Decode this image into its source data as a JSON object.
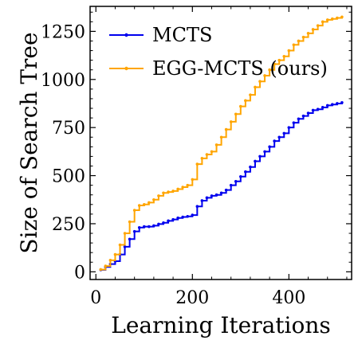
{
  "chart_data": {
    "type": "line",
    "title": "",
    "xlabel": "Learning Iterations",
    "ylabel": "Size of Search Tree",
    "xlim": [
      -12,
      530
    ],
    "ylim": [
      -40,
      1380
    ],
    "xticks": [
      0,
      200,
      400
    ],
    "xtick_labels": [
      "0",
      "200",
      "400"
    ],
    "yticks": [
      0,
      250,
      500,
      750,
      1000,
      1250
    ],
    "ytick_labels": [
      "0",
      "250",
      "500",
      "750",
      "1000",
      "1250"
    ],
    "grid": false,
    "legend_position": "top-left",
    "series": [
      {
        "name": "MCTS",
        "color": "#0000ee",
        "x": [
          10,
          20,
          30,
          40,
          50,
          60,
          70,
          80,
          90,
          100,
          110,
          120,
          130,
          140,
          150,
          160,
          170,
          180,
          190,
          200,
          210,
          220,
          230,
          240,
          250,
          260,
          270,
          280,
          290,
          300,
          310,
          320,
          330,
          340,
          350,
          360,
          370,
          380,
          390,
          400,
          410,
          420,
          430,
          440,
          450,
          460,
          470,
          480,
          490,
          500,
          510
        ],
        "y": [
          10,
          25,
          40,
          55,
          90,
          130,
          170,
          210,
          230,
          235,
          235,
          240,
          248,
          255,
          265,
          272,
          280,
          285,
          288,
          295,
          340,
          370,
          385,
          395,
          400,
          410,
          425,
          450,
          470,
          495,
          520,
          545,
          575,
          600,
          625,
          650,
          680,
          700,
          720,
          750,
          775,
          795,
          810,
          825,
          840,
          845,
          855,
          865,
          870,
          875,
          880
        ]
      },
      {
        "name": "EGG-MCTS (ours)",
        "color": "#ffa500",
        "x": [
          10,
          20,
          30,
          40,
          50,
          60,
          70,
          80,
          90,
          100,
          110,
          120,
          130,
          140,
          150,
          160,
          170,
          180,
          190,
          200,
          210,
          220,
          230,
          240,
          250,
          260,
          270,
          280,
          290,
          300,
          310,
          320,
          330,
          340,
          350,
          360,
          370,
          380,
          390,
          400,
          410,
          420,
          430,
          440,
          450,
          460,
          470,
          480,
          490,
          500,
          510
        ],
        "y": [
          12,
          30,
          60,
          90,
          140,
          200,
          260,
          320,
          345,
          350,
          360,
          375,
          395,
          410,
          415,
          420,
          430,
          440,
          450,
          480,
          560,
          590,
          610,
          625,
          660,
          700,
          740,
          780,
          820,
          860,
          890,
          920,
          960,
          990,
          1020,
          1050,
          1080,
          1100,
          1120,
          1150,
          1180,
          1200,
          1220,
          1240,
          1260,
          1280,
          1300,
          1310,
          1315,
          1320,
          1325
        ]
      }
    ]
  }
}
